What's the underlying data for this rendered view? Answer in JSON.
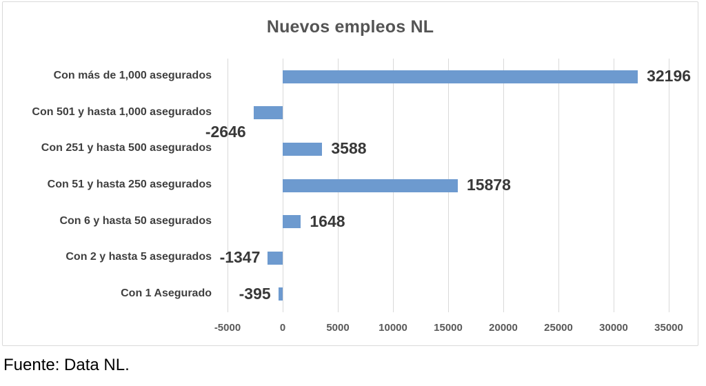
{
  "title": "Nuevos empleos NL",
  "source": "Fuente: Data NL.",
  "colors": {
    "bar": "#6D9ACF",
    "grid": "#D9D9D9",
    "frame_border": "#D9D9D9",
    "title_text": "#545454",
    "category_text": "#3F3F3F",
    "value_text": "#383838",
    "tick_text": "#595959",
    "background": "#FFFFFF"
  },
  "chart_data": {
    "type": "bar",
    "orientation": "horizontal",
    "title": "Nuevos empleos NL",
    "categories": [
      "Con más de 1,000 asegurados",
      "Con 501 y hasta 1,000 asegurados",
      "Con 251 y hasta 500 asegurados",
      "Con 51 y hasta 250 asegurados",
      "Con 6 y hasta 50 asegurados",
      "Con 2 y hasta 5 asegurados",
      "Con 1 Asegurado"
    ],
    "values": [
      32196,
      -2646,
      3588,
      15878,
      1648,
      -1347,
      -395
    ],
    "value_labels": [
      "32196",
      "-2646",
      "3588",
      "15878",
      "1648",
      "-1347",
      "-395"
    ],
    "xlim": [
      -5000,
      35000
    ],
    "x_ticks": [
      -5000,
      0,
      5000,
      10000,
      15000,
      20000,
      25000,
      30000,
      35000
    ],
    "x_tick_labels": [
      "-5000",
      "0",
      "5000",
      "10000",
      "15000",
      "20000",
      "25000",
      "30000",
      "35000"
    ],
    "grid": "vertical",
    "legend": "none",
    "xlabel": "",
    "ylabel": "",
    "label_dy": [
      0,
      28,
      0,
      0,
      0,
      0,
      0
    ]
  }
}
